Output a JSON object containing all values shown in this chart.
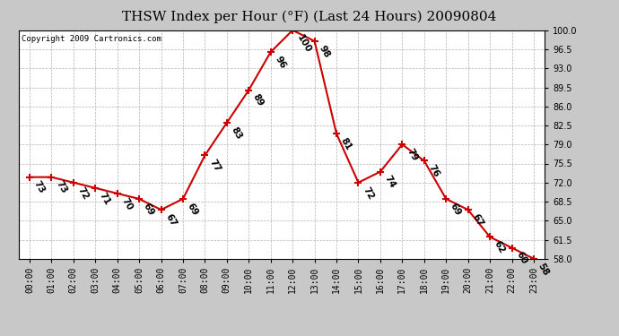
{
  "title": "THSW Index per Hour (°F) (Last 24 Hours) 20090804",
  "copyright": "Copyright 2009 Cartronics.com",
  "hours": [
    "00:00",
    "01:00",
    "02:00",
    "03:00",
    "04:00",
    "05:00",
    "06:00",
    "07:00",
    "08:00",
    "09:00",
    "10:00",
    "11:00",
    "12:00",
    "13:00",
    "14:00",
    "15:00",
    "16:00",
    "17:00",
    "18:00",
    "19:00",
    "20:00",
    "21:00",
    "22:00",
    "23:00"
  ],
  "values": [
    73,
    73,
    72,
    71,
    70,
    69,
    67,
    69,
    77,
    83,
    89,
    96,
    100,
    98,
    81,
    72,
    74,
    79,
    76,
    69,
    67,
    62,
    60,
    58
  ],
  "line_color": "#cc0000",
  "marker_color": "#cc0000",
  "bg_color": "#c8c8c8",
  "plot_bg_color": "#ffffff",
  "grid_color": "#aaaaaa",
  "ylim_min": 58.0,
  "ylim_max": 100.0,
  "yticks": [
    58.0,
    61.5,
    65.0,
    68.5,
    72.0,
    75.5,
    79.0,
    82.5,
    86.0,
    89.5,
    93.0,
    96.5,
    100.0
  ],
  "title_fontsize": 11,
  "label_fontsize": 7.5,
  "copyright_fontsize": 6.5,
  "tick_fontsize": 7
}
